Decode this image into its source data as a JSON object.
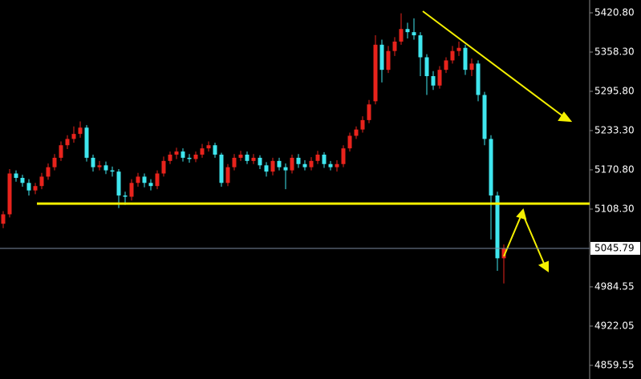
{
  "chart_data": {
    "type": "candlestick",
    "up_color": "#e8231c",
    "down_color": "#3fe6ee",
    "open": [
      5085,
      5100,
      5165,
      5158,
      5150,
      5138,
      5145,
      5160,
      5175,
      5190,
      5210,
      5220,
      5228,
      5238,
      5190,
      5175,
      5178,
      5170,
      5168,
      5130,
      5128,
      5150,
      5160,
      5150,
      5145,
      5165,
      5185,
      5195,
      5200,
      5190,
      5188,
      5195,
      5205,
      5210,
      5195,
      5150,
      5175,
      5190,
      5195,
      5185,
      5190,
      5178,
      5168,
      5185,
      5175,
      5170,
      5190,
      5180,
      5175,
      5185,
      5195,
      5180,
      5175,
      5180,
      5205,
      5225,
      5235,
      5250,
      5280,
      5370,
      5330,
      5360,
      5375,
      5395,
      5390,
      5385,
      5350,
      5320,
      5305,
      5330,
      5345,
      5360,
      5365,
      5330,
      5340,
      5290,
      5220,
      5130,
      5030
    ],
    "high": [
      5105,
      5172,
      5170,
      5163,
      5156,
      5150,
      5166,
      5181,
      5196,
      5216,
      5226,
      5240,
      5248,
      5242,
      5195,
      5185,
      5184,
      5176,
      5172,
      5136,
      5156,
      5166,
      5165,
      5156,
      5170,
      5192,
      5200,
      5206,
      5205,
      5196,
      5200,
      5212,
      5216,
      5214,
      5198,
      5180,
      5196,
      5201,
      5200,
      5196,
      5194,
      5183,
      5190,
      5190,
      5181,
      5195,
      5196,
      5186,
      5191,
      5201,
      5199,
      5185,
      5186,
      5210,
      5230,
      5240,
      5256,
      5282,
      5385,
      5378,
      5368,
      5382,
      5420,
      5405,
      5412,
      5390,
      5355,
      5328,
      5336,
      5350,
      5368,
      5375,
      5370,
      5348,
      5345,
      5295,
      5226,
      5136,
      5052
    ],
    "low": [
      5078,
      5095,
      5152,
      5144,
      5130,
      5132,
      5140,
      5155,
      5170,
      5185,
      5204,
      5214,
      5222,
      5184,
      5168,
      5170,
      5164,
      5160,
      5110,
      5115,
      5122,
      5144,
      5143,
      5138,
      5140,
      5160,
      5180,
      5188,
      5184,
      5182,
      5183,
      5190,
      5200,
      5190,
      5144,
      5145,
      5170,
      5185,
      5180,
      5180,
      5172,
      5160,
      5162,
      5170,
      5140,
      5165,
      5174,
      5170,
      5170,
      5180,
      5174,
      5170,
      5168,
      5175,
      5200,
      5220,
      5230,
      5245,
      5275,
      5310,
      5325,
      5352,
      5370,
      5380,
      5378,
      5320,
      5290,
      5298,
      5300,
      5325,
      5340,
      5352,
      5322,
      5320,
      5280,
      5210,
      5060,
      5010,
      4990
    ],
    "close": [
      5100,
      5165,
      5158,
      5150,
      5138,
      5145,
      5160,
      5175,
      5190,
      5210,
      5220,
      5228,
      5238,
      5190,
      5175,
      5178,
      5170,
      5168,
      5130,
      5128,
      5150,
      5160,
      5150,
      5145,
      5165,
      5185,
      5195,
      5200,
      5190,
      5188,
      5195,
      5205,
      5210,
      5195,
      5150,
      5175,
      5190,
      5195,
      5185,
      5190,
      5178,
      5168,
      5185,
      5175,
      5170,
      5190,
      5180,
      5175,
      5185,
      5195,
      5180,
      5175,
      5180,
      5205,
      5225,
      5235,
      5250,
      5275,
      5370,
      5330,
      5360,
      5375,
      5395,
      5390,
      5385,
      5350,
      5320,
      5305,
      5330,
      5345,
      5360,
      5365,
      5330,
      5340,
      5290,
      5220,
      5130,
      5030,
      5045.79
    ],
    "ylim": [
      4837.8,
      5441.2
    ],
    "yticks": [
      {
        "value": 5420.8,
        "label": "5420.80"
      },
      {
        "value": 5358.3,
        "label": "5358.30"
      },
      {
        "value": 5295.8,
        "label": "5295.80"
      },
      {
        "value": 5233.3,
        "label": "5233.30"
      },
      {
        "value": 5170.8,
        "label": "5170.80"
      },
      {
        "value": 5108.3,
        "label": "5108.30"
      },
      4984.55,
      4922.05,
      4859.55
    ],
    "last_price": 5045.79,
    "support_level": 5117
  }
}
